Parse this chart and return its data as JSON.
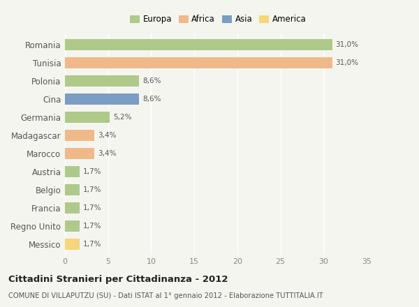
{
  "categories": [
    "Romania",
    "Tunisia",
    "Polonia",
    "Cina",
    "Germania",
    "Madagascar",
    "Marocco",
    "Austria",
    "Belgio",
    "Francia",
    "Regno Unito",
    "Messico"
  ],
  "values": [
    31.0,
    31.0,
    8.6,
    8.6,
    5.2,
    3.4,
    3.4,
    1.7,
    1.7,
    1.7,
    1.7,
    1.7
  ],
  "labels": [
    "31,0%",
    "31,0%",
    "8,6%",
    "8,6%",
    "5,2%",
    "3,4%",
    "3,4%",
    "1,7%",
    "1,7%",
    "1,7%",
    "1,7%",
    "1,7%"
  ],
  "colors": [
    "#aec98a",
    "#f0b989",
    "#aec98a",
    "#7b9dc4",
    "#aec98a",
    "#f0b989",
    "#f0b989",
    "#aec98a",
    "#aec98a",
    "#aec98a",
    "#aec98a",
    "#f5d67a"
  ],
  "legend_labels": [
    "Europa",
    "Africa",
    "Asia",
    "America"
  ],
  "legend_colors": [
    "#aec98a",
    "#f0b989",
    "#7b9dc4",
    "#f5d67a"
  ],
  "xlim": [
    0,
    35
  ],
  "xticks": [
    0,
    5,
    10,
    15,
    20,
    25,
    30,
    35
  ],
  "title": "Cittadini Stranieri per Cittadinanza - 2012",
  "subtitle": "COMUNE DI VILLAPUTZU (SU) - Dati ISTAT al 1° gennaio 2012 - Elaborazione TUTTITALIA.IT",
  "background_color": "#f5f5f0",
  "grid_color": "#ffffff",
  "bar_height": 0.62
}
